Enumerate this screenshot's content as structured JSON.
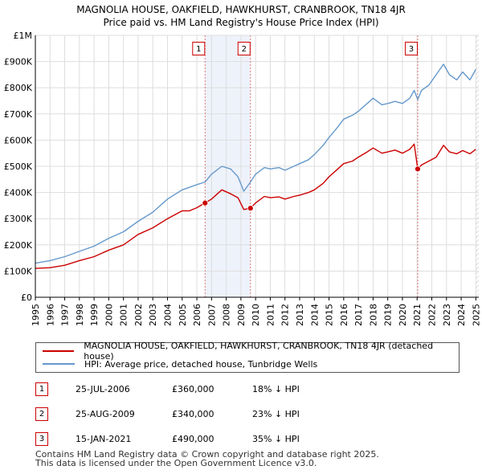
{
  "header": {
    "title_line1": "MAGNOLIA HOUSE, OAKFIELD, HAWKHURST, CRANBROOK, TN18 4JR",
    "title_line2": "Price paid vs. HM Land Registry's House Price Index (HPI)"
  },
  "colors": {
    "price_paid": "#cc0000",
    "hpi": "#6699cc",
    "marker_line": "#dd7777",
    "grid": "#dddddd",
    "shade": "#eef2fb"
  },
  "chart_data": {
    "type": "line",
    "title": "MAGNOLIA HOUSE, OAKFIELD, HAWKHURST, CRANBROOK, TN18 4JR — Price paid vs. HM Land Registry's House Price Index (HPI)",
    "xlabel": "",
    "ylabel": "",
    "xlim": [
      1995,
      2025.2
    ],
    "ylim": [
      0,
      1000000
    ],
    "y_ticks": [
      {
        "value": 0,
        "label": "£0"
      },
      {
        "value": 100000,
        "label": "£100K"
      },
      {
        "value": 200000,
        "label": "£200K"
      },
      {
        "value": 300000,
        "label": "£300K"
      },
      {
        "value": 400000,
        "label": "£400K"
      },
      {
        "value": 500000,
        "label": "£500K"
      },
      {
        "value": 600000,
        "label": "£600K"
      },
      {
        "value": 700000,
        "label": "£700K"
      },
      {
        "value": 800000,
        "label": "£800K"
      },
      {
        "value": 900000,
        "label": "£900K"
      },
      {
        "value": 1000000,
        "label": "£1M"
      }
    ],
    "x_ticks": [
      "1995",
      "1996",
      "1997",
      "1998",
      "1999",
      "2000",
      "2001",
      "2002",
      "2003",
      "2004",
      "2005",
      "2006",
      "2007",
      "2008",
      "2009",
      "2010",
      "2011",
      "2012",
      "2013",
      "2014",
      "2015",
      "2016",
      "2017",
      "2018",
      "2019",
      "2020",
      "2021",
      "2022",
      "2023",
      "2024",
      "2025"
    ],
    "grid": true,
    "series": [
      {
        "name": "MAGNOLIA HOUSE, OAKFIELD, HAWKHURST, CRANBROOK, TN18 4JR (detached house)",
        "color": "#cc0000",
        "points": [
          [
            1995.0,
            110000
          ],
          [
            1996.0,
            113000
          ],
          [
            1997.0,
            122000
          ],
          [
            1998.0,
            140000
          ],
          [
            1999.0,
            155000
          ],
          [
            2000.0,
            180000
          ],
          [
            2001.0,
            200000
          ],
          [
            2002.0,
            240000
          ],
          [
            2003.0,
            265000
          ],
          [
            2004.0,
            300000
          ],
          [
            2005.0,
            330000
          ],
          [
            2005.5,
            330000
          ],
          [
            2006.0,
            342000
          ],
          [
            2006.56,
            360000
          ],
          [
            2007.0,
            375000
          ],
          [
            2007.7,
            410000
          ],
          [
            2008.3,
            395000
          ],
          [
            2008.8,
            380000
          ],
          [
            2009.2,
            335000
          ],
          [
            2009.65,
            340000
          ],
          [
            2010.0,
            360000
          ],
          [
            2010.6,
            385000
          ],
          [
            2011.0,
            380000
          ],
          [
            2011.6,
            383000
          ],
          [
            2012.0,
            375000
          ],
          [
            2012.6,
            385000
          ],
          [
            2013.0,
            390000
          ],
          [
            2013.6,
            400000
          ],
          [
            2014.0,
            410000
          ],
          [
            2014.6,
            435000
          ],
          [
            2015.0,
            460000
          ],
          [
            2015.6,
            490000
          ],
          [
            2016.0,
            510000
          ],
          [
            2016.6,
            520000
          ],
          [
            2017.0,
            535000
          ],
          [
            2017.6,
            555000
          ],
          [
            2018.0,
            570000
          ],
          [
            2018.6,
            550000
          ],
          [
            2019.0,
            555000
          ],
          [
            2019.5,
            562000
          ],
          [
            2020.0,
            550000
          ],
          [
            2020.5,
            565000
          ],
          [
            2020.8,
            585000
          ],
          [
            2021.04,
            490000
          ],
          [
            2021.3,
            505000
          ],
          [
            2021.8,
            520000
          ],
          [
            2022.3,
            535000
          ],
          [
            2022.8,
            580000
          ],
          [
            2023.2,
            555000
          ],
          [
            2023.7,
            548000
          ],
          [
            2024.1,
            560000
          ],
          [
            2024.6,
            548000
          ],
          [
            2025.0,
            565000
          ]
        ]
      },
      {
        "name": "HPI: Average price, detached house, Tunbridge Wells",
        "color": "#6699cc",
        "points": [
          [
            1995.0,
            130000
          ],
          [
            1996.0,
            140000
          ],
          [
            1997.0,
            155000
          ],
          [
            1998.0,
            175000
          ],
          [
            1999.0,
            195000
          ],
          [
            2000.0,
            225000
          ],
          [
            2001.0,
            250000
          ],
          [
            2002.0,
            290000
          ],
          [
            2003.0,
            325000
          ],
          [
            2004.0,
            375000
          ],
          [
            2005.0,
            410000
          ],
          [
            2006.0,
            430000
          ],
          [
            2006.56,
            440000
          ],
          [
            2007.0,
            470000
          ],
          [
            2007.7,
            500000
          ],
          [
            2008.3,
            490000
          ],
          [
            2008.8,
            460000
          ],
          [
            2009.2,
            405000
          ],
          [
            2009.65,
            440000
          ],
          [
            2010.0,
            470000
          ],
          [
            2010.6,
            495000
          ],
          [
            2011.0,
            490000
          ],
          [
            2011.6,
            495000
          ],
          [
            2012.0,
            485000
          ],
          [
            2012.6,
            500000
          ],
          [
            2013.0,
            510000
          ],
          [
            2013.6,
            525000
          ],
          [
            2014.0,
            545000
          ],
          [
            2014.6,
            580000
          ],
          [
            2015.0,
            610000
          ],
          [
            2015.6,
            650000
          ],
          [
            2016.0,
            680000
          ],
          [
            2016.6,
            695000
          ],
          [
            2017.0,
            710000
          ],
          [
            2017.6,
            740000
          ],
          [
            2018.0,
            760000
          ],
          [
            2018.6,
            735000
          ],
          [
            2019.0,
            740000
          ],
          [
            2019.5,
            748000
          ],
          [
            2020.0,
            740000
          ],
          [
            2020.5,
            760000
          ],
          [
            2020.8,
            790000
          ],
          [
            2021.04,
            755000
          ],
          [
            2021.3,
            790000
          ],
          [
            2021.8,
            810000
          ],
          [
            2022.3,
            850000
          ],
          [
            2022.8,
            890000
          ],
          [
            2023.2,
            850000
          ],
          [
            2023.7,
            830000
          ],
          [
            2024.1,
            860000
          ],
          [
            2024.6,
            830000
          ],
          [
            2025.0,
            870000
          ]
        ]
      }
    ],
    "transactions": [
      {
        "label": "1",
        "year": 2006.56,
        "price": 360000
      },
      {
        "label": "2",
        "year": 2009.65,
        "price": 340000
      },
      {
        "label": "3",
        "year": 2021.04,
        "price": 490000
      }
    ],
    "hatched_after_year": 2025.0
  },
  "legend": {
    "price_paid_label": "MAGNOLIA HOUSE, OAKFIELD, HAWKHURST, CRANBROOK, TN18 4JR (detached house)",
    "hpi_label": "HPI: Average price, detached house, Tunbridge Wells"
  },
  "transactions_table": [
    {
      "num": "1",
      "date": "25-JUL-2006",
      "price": "£360,000",
      "hpi_diff": "18% ↓ HPI"
    },
    {
      "num": "2",
      "date": "25-AUG-2009",
      "price": "£340,000",
      "hpi_diff": "23% ↓ HPI"
    },
    {
      "num": "3",
      "date": "15-JAN-2021",
      "price": "£490,000",
      "hpi_diff": "35% ↓ HPI"
    }
  ],
  "footer": {
    "line1": "Contains HM Land Registry data © Crown copyright and database right 2025.",
    "line2": "This data is licensed under the Open Government Licence v3.0."
  }
}
